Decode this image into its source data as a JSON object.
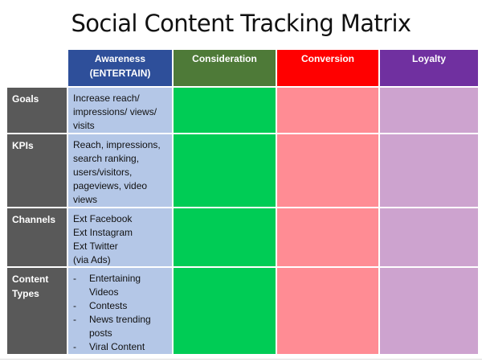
{
  "title": "Social Content Tracking Matrix",
  "colors": {
    "awareness_header": "#2e4f9a",
    "consideration_header": "#4e7a38",
    "conversion_header": "#ff0000",
    "loyalty_header": "#7030a0",
    "row_header": "#595959",
    "awareness_cell": "#b4c7e7",
    "consideration_cell": "#00cc55",
    "conversion_cell": "#ff8c94",
    "loyalty_cell": "#cda3cf"
  },
  "columns": {
    "awareness": {
      "line1": "Awareness",
      "line2": "(ENTERTAIN)"
    },
    "consideration": "Consideration",
    "conversion": "Conversion",
    "loyalty": "Loyalty"
  },
  "rows": {
    "goals": {
      "label": "Goals",
      "awareness_lines": [
        "Increase reach/",
        "impressions/ views/",
        "visits"
      ]
    },
    "kpis": {
      "label": "KPIs",
      "awareness_lines": [
        "Reach, impressions,",
        "search ranking,",
        "users/visitors,",
        "pageviews, video",
        "views"
      ]
    },
    "channels": {
      "label": "Channels",
      "awareness_lines": [
        "Ext Facebook",
        "Ext Instagram",
        "Ext Twitter",
        "(via Ads)"
      ]
    },
    "content_types": {
      "label_line1": "Content",
      "label_line2": "Types",
      "bullet": "-",
      "items": [
        {
          "line1": "Entertaining",
          "line2": "Videos"
        },
        {
          "line1": "Contests"
        },
        {
          "line1": "News trending",
          "line2": "posts"
        },
        {
          "line1": "Viral Content"
        }
      ]
    }
  }
}
